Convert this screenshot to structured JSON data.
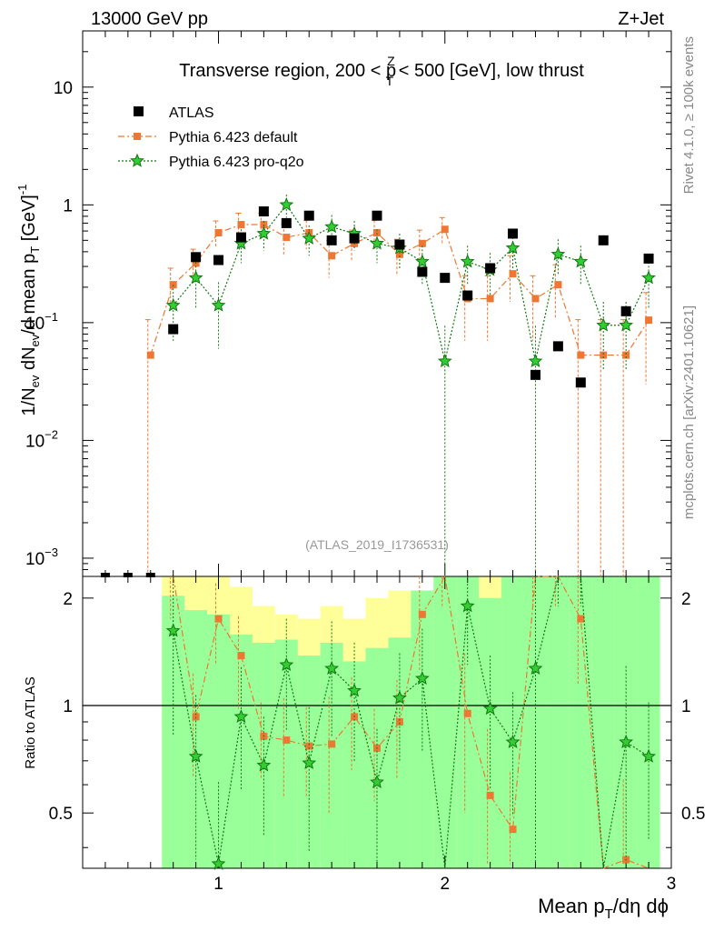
{
  "header": {
    "left": "13000 GeV pp",
    "right": "Z+Jet"
  },
  "title": {
    "prefix": "Transverse region, 200 < p",
    "sup": "Z",
    "sub": "T",
    "suffix": " < 500 [GeV], low thrust"
  },
  "side_labels": {
    "rivet": "Rivet 4.1.0, ≥ 100k events",
    "mcplots": "mcplots.cern.ch [arXiv:2401.10621]"
  },
  "watermark": "(ATLAS_2019_I1736531)",
  "colors": {
    "data": "#000000",
    "default": "#ee7733",
    "proq2o": "#117711",
    "band_yellow": "#ffff99",
    "band_green": "#99ff99"
  },
  "chart_data": {
    "type": "scatter",
    "x_label": "Mean p_T/dη dϕ",
    "y_label_main": "1/N_ev dN_ev/d mean p_T [GeV]^-1",
    "y_label_ratio": "Ratio to ATLAS",
    "xlim": [
      0.4,
      3.0
    ],
    "ylim_main": [
      0.0007,
      30
    ],
    "ylim_ratio": [
      0.35,
      2.3
    ],
    "x_ticks": [
      "1",
      "2",
      "3"
    ],
    "y_ticks_main": [
      "10",
      "1",
      "10^-1",
      "10^-2",
      "10^-3"
    ],
    "y_ticks_ratio": [
      "2",
      "1",
      "0.5"
    ],
    "legend": [
      "ATLAS",
      "Pythia 6.423 default",
      "Pythia 6.423 pro-q2o"
    ],
    "x": [
      0.5,
      0.6,
      0.7,
      0.8,
      0.9,
      1.0,
      1.1,
      1.2,
      1.3,
      1.4,
      1.5,
      1.6,
      1.7,
      1.8,
      1.9,
      2.0,
      2.1,
      2.2,
      2.3,
      2.4,
      2.5,
      2.6,
      2.7,
      2.8,
      2.9
    ],
    "atlas": [
      null,
      null,
      null,
      0.088,
      0.36,
      0.34,
      0.53,
      0.88,
      0.7,
      0.81,
      0.5,
      0.52,
      0.81,
      0.46,
      0.27,
      0.24,
      0.17,
      0.29,
      0.57,
      0.036,
      0.063,
      0.031,
      0.5,
      0.125,
      0.35
    ],
    "default": [
      null,
      null,
      0.053,
      0.21,
      0.32,
      0.58,
      0.68,
      0.68,
      0.53,
      0.58,
      0.37,
      0.47,
      0.58,
      0.38,
      0.47,
      0.62,
      0.16,
      0.16,
      0.26,
      0.16,
      0.21,
      0.053,
      0.053,
      0.053,
      0.105
    ],
    "default_err_lo": [
      null,
      null,
      0.053,
      0.08,
      0.1,
      0.15,
      0.17,
      0.17,
      0.15,
      0.16,
      0.13,
      0.14,
      0.16,
      0.13,
      0.14,
      0.16,
      0.09,
      0.09,
      0.11,
      0.09,
      0.1,
      0.053,
      0.053,
      0.053,
      0.075
    ],
    "default_err_hi": [
      null,
      null,
      0.053,
      0.08,
      0.1,
      0.15,
      0.17,
      0.17,
      0.15,
      0.16,
      0.13,
      0.14,
      0.16,
      0.13,
      0.14,
      0.16,
      0.09,
      0.09,
      0.11,
      0.09,
      0.1,
      0.053,
      0.053,
      0.053,
      0.075
    ],
    "proq2o": [
      null,
      null,
      null,
      0.14,
      0.24,
      0.14,
      0.47,
      0.57,
      1.0,
      0.52,
      0.65,
      0.57,
      0.47,
      0.43,
      0.33,
      0.047,
      0.33,
      0.28,
      0.43,
      0.047,
      0.38,
      0.33,
      0.095,
      0.095,
      0.24
    ],
    "proq2o_err_lo": [
      null,
      null,
      null,
      0.07,
      0.11,
      0.08,
      0.15,
      0.16,
      0.22,
      0.15,
      0.17,
      0.16,
      0.15,
      0.14,
      0.12,
      0.047,
      0.12,
      0.11,
      0.14,
      0.047,
      0.13,
      0.12,
      0.055,
      0.055,
      0.11
    ],
    "proq2o_err_hi": [
      null,
      null,
      null,
      0.07,
      0.11,
      0.08,
      0.15,
      0.16,
      0.22,
      0.15,
      0.17,
      0.16,
      0.15,
      0.14,
      0.12,
      0.047,
      0.12,
      0.11,
      0.14,
      0.047,
      0.13,
      0.12,
      0.055,
      0.055,
      0.11
    ],
    "ratio_default": [
      null,
      null,
      null,
      2.35,
      0.93,
      1.75,
      1.38,
      0.82,
      0.8,
      0.77,
      0.78,
      0.93,
      0.76,
      0.9,
      1.8,
      2.5,
      0.95,
      0.56,
      0.45,
      2.5,
      2.5,
      1.75,
      0.1,
      0.37,
      0.1
    ],
    "ratio_default_err": [
      null,
      null,
      null,
      0.6,
      0.3,
      0.45,
      0.4,
      0.2,
      0.25,
      0.22,
      0.28,
      0.27,
      0.22,
      0.28,
      0.55,
      0.6,
      0.45,
      0.3,
      0.2,
      0.6,
      0.6,
      0.6,
      0.0,
      0.25,
      0.0
    ],
    "ratio_proq2o": [
      null,
      null,
      null,
      1.62,
      0.72,
      0.36,
      0.93,
      0.68,
      1.3,
      0.69,
      1.27,
      1.1,
      0.61,
      1.05,
      1.19,
      0.1,
      1.9,
      0.98,
      0.79,
      1.27,
      2.5,
      2.5,
      0.1,
      0.79,
      0.72
    ],
    "ratio_proq2o_err": [
      null,
      null,
      null,
      0.8,
      0.35,
      0.25,
      0.35,
      0.25,
      0.45,
      0.3,
      0.45,
      0.4,
      0.25,
      0.35,
      0.45,
      0.0,
      0.6,
      0.4,
      0.3,
      1.2,
      0.6,
      0.6,
      0.0,
      0.5,
      0.3
    ],
    "band_yellow": [
      null,
      null,
      null,
      [
        0.35,
        2.3
      ],
      [
        0.35,
        2.3
      ],
      [
        0.35,
        2.3
      ],
      [
        0.38,
        2.15
      ],
      [
        0.45,
        1.9
      ],
      [
        0.55,
        1.8
      ],
      [
        0.45,
        1.75
      ],
      [
        0.55,
        1.9
      ],
      [
        0.45,
        1.75
      ],
      [
        0.4,
        2.0
      ],
      [
        0.35,
        2.1
      ],
      [
        0.35,
        2.1
      ],
      [
        0.35,
        2.3
      ],
      [
        0.35,
        2.3
      ],
      [
        0.35,
        2.3
      ],
      [
        0.35,
        2.3
      ],
      [
        0.35,
        2.3
      ],
      [
        0.35,
        2.3
      ],
      [
        0.35,
        2.3
      ],
      [
        0.35,
        2.3
      ],
      [
        0.35,
        2.3
      ],
      [
        0.35,
        2.3
      ]
    ],
    "band_green": [
      null,
      null,
      null,
      [
        0.35,
        2.03
      ],
      [
        0.35,
        1.85
      ],
      [
        0.35,
        1.8
      ],
      [
        0.35,
        1.58
      ],
      [
        0.35,
        1.5
      ],
      [
        0.35,
        1.53
      ],
      [
        0.35,
        1.38
      ],
      [
        0.35,
        1.5
      ],
      [
        0.35,
        1.33
      ],
      [
        0.35,
        1.45
      ],
      [
        0.35,
        1.55
      ],
      [
        0.35,
        2.1
      ],
      [
        0.35,
        2.3
      ],
      [
        0.35,
        2.3
      ],
      [
        0.35,
        2.0
      ],
      [
        0.35,
        2.3
      ],
      [
        0.35,
        2.3
      ],
      [
        0.35,
        2.3
      ],
      [
        0.35,
        2.3
      ],
      [
        0.35,
        2.3
      ],
      [
        0.35,
        2.3
      ],
      [
        0.35,
        2.3
      ]
    ]
  }
}
